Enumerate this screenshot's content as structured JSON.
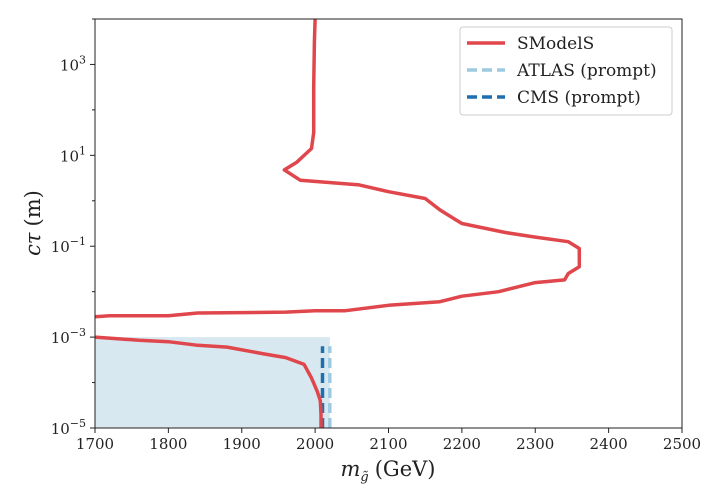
{
  "chart_data": {
    "type": "line",
    "title": "",
    "xlabel_math": "m",
    "xlabel_math_sub": "g̃",
    "xlabel_unit": "(GeV)",
    "ylabel_math": "cτ",
    "ylabel_unit": "(m)",
    "xlim": [
      1700,
      2500
    ],
    "ylim_log10": [
      -5,
      4
    ],
    "y_scale": "log",
    "grid": false,
    "legend_placement": "top-right",
    "x_ticks": [
      1700,
      1800,
      1900,
      2000,
      2100,
      2200,
      2300,
      2400,
      2500
    ],
    "x_tick_labels": [
      "1700",
      "1800",
      "1900",
      "2000",
      "2100",
      "2200",
      "2300",
      "2400",
      "2500"
    ],
    "y_ticks": [
      {
        "exp": -5,
        "base": "10",
        "sup": "−5"
      },
      {
        "exp": -3,
        "base": "10",
        "sup": "−3"
      },
      {
        "exp": -1,
        "base": "10",
        "sup": "−1"
      },
      {
        "exp": 1,
        "base": "10",
        "sup": "1"
      },
      {
        "exp": 3,
        "base": "10",
        "sup": "3"
      }
    ],
    "colors": {
      "smodels": "#e0474c",
      "atlas": "#9ecae1",
      "cms": "#1f6fb0",
      "excluded_fill": "#d8e8f0"
    },
    "series": [
      {
        "name": "SModelS",
        "style": "solid",
        "points": [
          [
            2008,
            -5
          ],
          [
            2008,
            -4.7
          ],
          [
            2007,
            -4.4
          ],
          [
            2003,
            -4.2
          ],
          [
            1995,
            -3.9
          ],
          [
            1985,
            -3.6
          ],
          [
            1960,
            -3.45
          ],
          [
            1930,
            -3.37
          ],
          [
            1880,
            -3.22
          ],
          [
            1840,
            -3.18
          ],
          [
            1800,
            -3.1
          ],
          [
            1760,
            -3.07
          ],
          [
            1700,
            -3.0
          ]
        ]
      },
      {
        "name": "SModelS",
        "style": "solid",
        "points": [
          [
            1700,
            -2.55
          ],
          [
            1720,
            -2.53
          ],
          [
            1800,
            -2.53
          ],
          [
            1840,
            -2.47
          ],
          [
            1900,
            -2.46
          ],
          [
            1960,
            -2.45
          ],
          [
            2000,
            -2.42
          ],
          [
            2040,
            -2.42
          ],
          [
            2100,
            -2.3
          ],
          [
            2170,
            -2.22
          ],
          [
            2200,
            -2.1
          ],
          [
            2250,
            -2.0
          ],
          [
            2280,
            -1.88
          ],
          [
            2300,
            -1.8
          ],
          [
            2340,
            -1.74
          ],
          [
            2345,
            -1.6
          ],
          [
            2360,
            -1.45
          ],
          [
            2360,
            -1.05
          ],
          [
            2345,
            -0.9
          ],
          [
            2300,
            -0.8
          ],
          [
            2260,
            -0.7
          ],
          [
            2200,
            -0.5
          ],
          [
            2190,
            -0.4
          ],
          [
            2170,
            -0.2
          ],
          [
            2150,
            0.05
          ],
          [
            2100,
            0.2
          ],
          [
            2060,
            0.35
          ],
          [
            1980,
            0.45
          ],
          [
            1958,
            0.68
          ],
          [
            1975,
            0.85
          ],
          [
            1995,
            1.15
          ],
          [
            1998,
            1.5
          ],
          [
            1998,
            2.5
          ],
          [
            1999,
            3.5
          ],
          [
            2000,
            4
          ]
        ]
      },
      {
        "name": "ATLAS (prompt)",
        "style": "dashed",
        "points": [
          [
            2020,
            -5
          ],
          [
            2020,
            -3.2
          ]
        ]
      },
      {
        "name": "CMS (prompt)",
        "style": "dashed",
        "points": [
          [
            2010,
            -5
          ],
          [
            2010,
            -3.2
          ]
        ]
      }
    ],
    "excluded_region": {
      "x_range": [
        1700,
        2020
      ],
      "y_log10_range": [
        -5,
        -3
      ]
    },
    "legend": [
      {
        "label": "SModelS",
        "series": "smodels",
        "style": "solid"
      },
      {
        "label": "ATLAS (prompt)",
        "series": "atlas",
        "style": "dashed"
      },
      {
        "label": "CMS (prompt)",
        "series": "cms",
        "style": "dashed"
      }
    ]
  }
}
